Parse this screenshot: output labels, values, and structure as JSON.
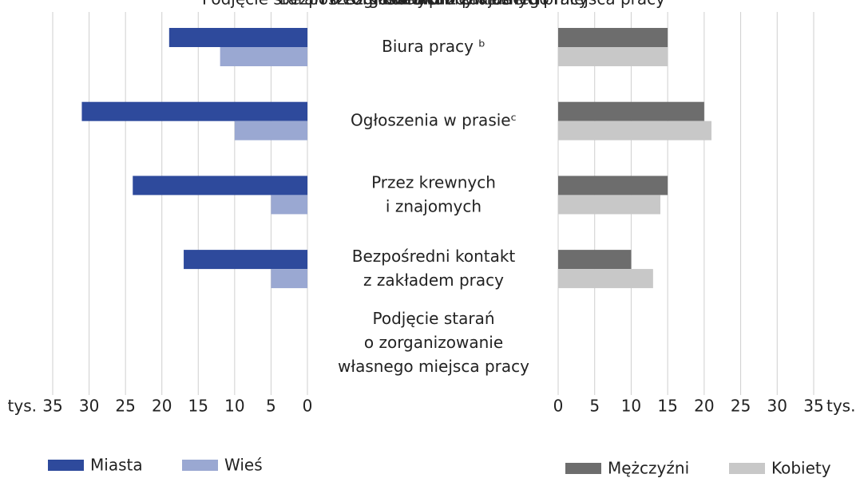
{
  "chart_data": [
    {
      "type": "bar",
      "orientation": "horizontal",
      "x_reversed": true,
      "categories": [
        "Biura pracy ᵇ",
        "Ogłoszenia w prasieᶜ",
        "Przez krewnych\ni znajomych",
        "Bezpośredni kontakt\nz zakładem pracy",
        "Podjęcie starań\no zorganizowanie\nwłasnego miejsca pracy"
      ],
      "series": [
        {
          "name": "Miasta",
          "color": "#2e4a9c",
          "values": [
            19,
            31,
            24,
            17,
            null
          ]
        },
        {
          "name": "Wieś",
          "color": "#9aa8d2",
          "values": [
            12,
            10,
            5,
            5,
            null
          ]
        }
      ],
      "x_unit": "tys.",
      "xlim": [
        0,
        35
      ],
      "xticks": [
        0,
        5,
        10,
        15,
        20,
        25,
        30,
        35
      ],
      "grid": true
    },
    {
      "type": "bar",
      "orientation": "horizontal",
      "x_reversed": false,
      "series": [
        {
          "name": "Mężczyźni",
          "color": "#6d6d6d",
          "values": [
            15,
            20,
            15,
            10,
            null
          ]
        },
        {
          "name": "Kobiety",
          "color": "#c8c8c8",
          "values": [
            15,
            21,
            14,
            13,
            null
          ]
        }
      ],
      "x_unit": "tys.",
      "xlim": [
        0,
        35
      ],
      "xticks": [
        0,
        5,
        10,
        15,
        20,
        25,
        30,
        35
      ],
      "grid": true
    }
  ]
}
